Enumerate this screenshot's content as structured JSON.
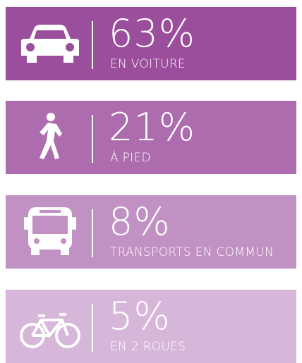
{
  "items": [
    {
      "value": "63%",
      "label": "EN VOITURE",
      "color": "#9b4e9c"
    },
    {
      "value": "21%",
      "label": "À PIED",
      "color": "#ad6cae"
    },
    {
      "value": "8%",
      "label": "TRANSPORTS EN COMMUN",
      "color": "#c291c3"
    },
    {
      "value": "5%",
      "label": "EN 2 ROUES",
      "color": "#d7b7d9"
    }
  ]
}
